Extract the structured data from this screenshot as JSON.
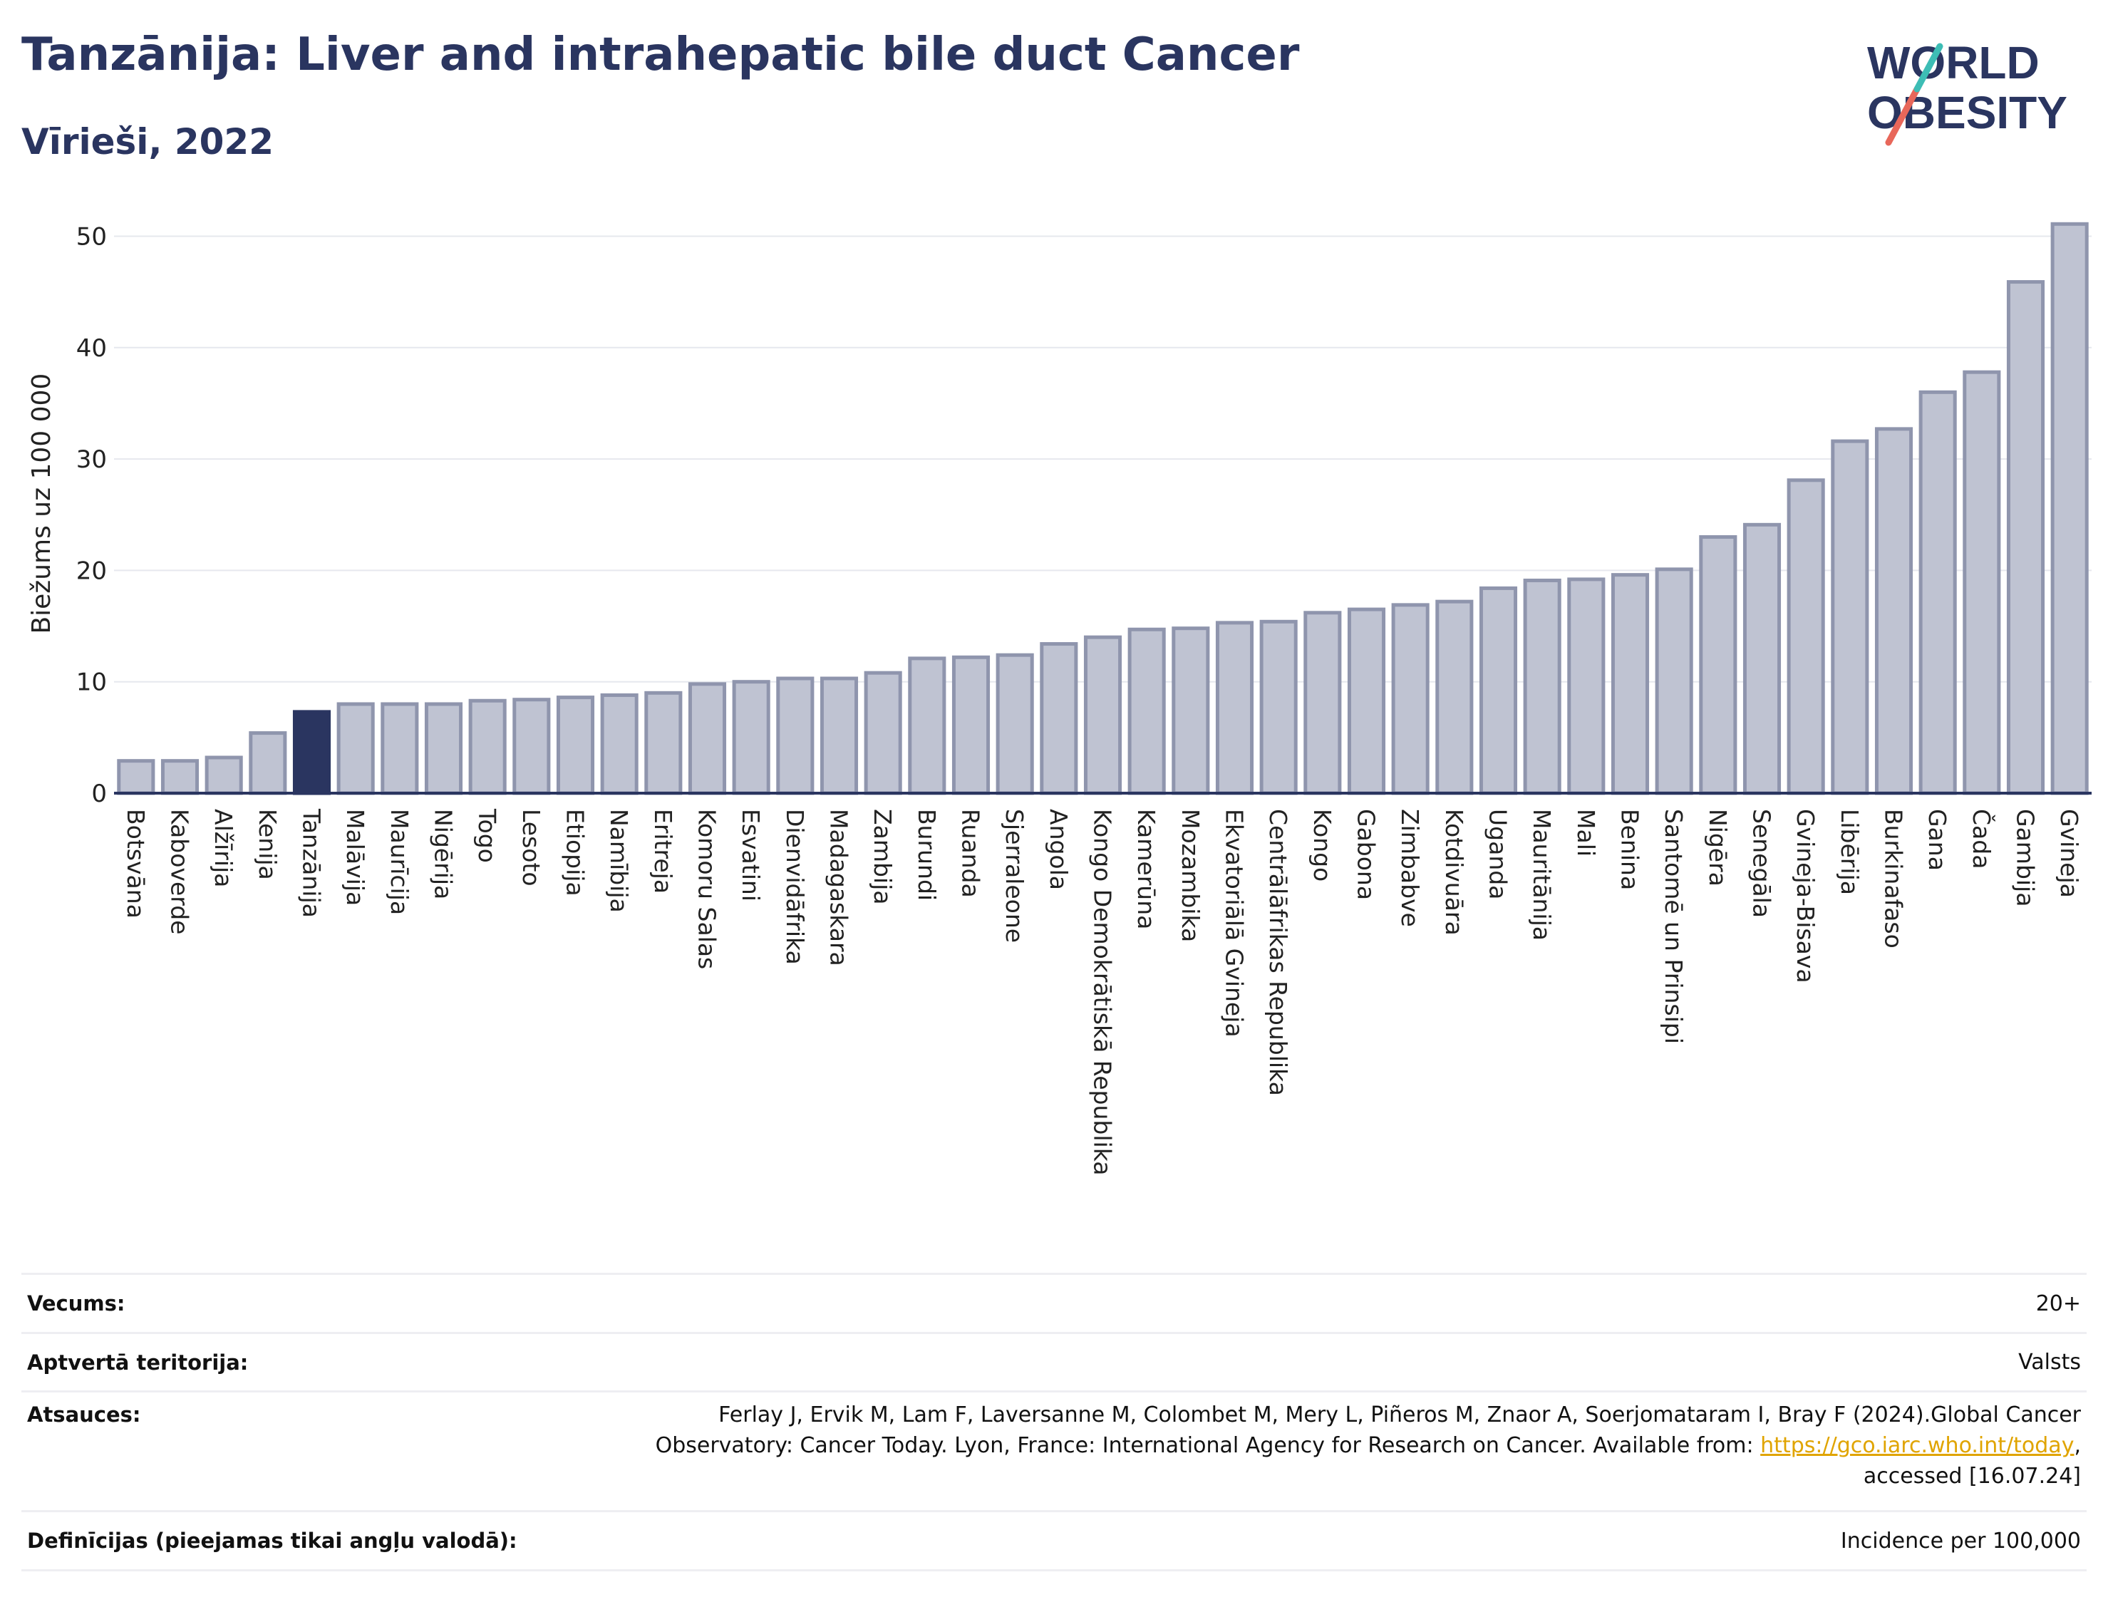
{
  "header": {
    "title": "Tanzānija: Liver and intrahepatic bile duct Cancer",
    "subtitle": "Vīrieši, 2022"
  },
  "logo": {
    "line1": "WORLD",
    "line2": "OBESITY",
    "colors": [
      "#2a3560",
      "#e8675a",
      "#3dbdb5"
    ]
  },
  "colors": {
    "bar": "#bfc3d2",
    "bar_stroke": "#8f95ad",
    "highlight": "#2a3560",
    "axis": "#2a3560",
    "grid": "#e6e8ee"
  },
  "chart_data": {
    "type": "bar",
    "title": "Tanzānija: Liver and intrahepatic bile duct Cancer",
    "subtitle": "Vīrieši, 2022",
    "ylabel": "Biežums uz 100 000",
    "xlabel": "",
    "ylim": [
      0,
      52
    ],
    "yticks": [
      0,
      10,
      20,
      30,
      40,
      50
    ],
    "grid": true,
    "highlight": "Tanzānija",
    "categories": [
      "Botsvāna",
      "Kaboverde",
      "Alžīrija",
      "Kenija",
      "Tanzānija",
      "Malāvija",
      "Maurīcija",
      "Nigērija",
      "Togo",
      "Lesoto",
      "Etiopija",
      "Namībija",
      "Eritreja",
      "Komoru Salas",
      "Esvatini",
      "Dienvidāfrika",
      "Madagaskara",
      "Zambija",
      "Burundi",
      "Ruanda",
      "Sjerraleone",
      "Angola",
      "Kongo Demokrātiskā Republika",
      "Kamerūna",
      "Mozambika",
      "Ekvatoriālā Gvineja",
      "Centrālāfrikas Republika",
      "Kongo",
      "Gabona",
      "Zimbabve",
      "Kotdivuāra",
      "Uganda",
      "Mauritānija",
      "Mali",
      "Benina",
      "Santomē un Prinsipi",
      "Nigēra",
      "Senegāla",
      "Gvineja-Bisava",
      "Libērija",
      "Burkinafaso",
      "Gana",
      "Čada",
      "Gambija",
      "Gvineja"
    ],
    "values": [
      2.9,
      2.9,
      3.2,
      5.4,
      7.3,
      8.0,
      8.0,
      8.0,
      8.3,
      8.4,
      8.6,
      8.8,
      9.0,
      9.8,
      10.0,
      10.3,
      10.3,
      10.8,
      12.1,
      12.2,
      12.4,
      13.4,
      14.0,
      14.7,
      14.8,
      15.3,
      15.4,
      16.2,
      16.5,
      16.9,
      17.2,
      18.4,
      19.1,
      19.2,
      19.6,
      20.1,
      23.0,
      24.1,
      28.1,
      31.6,
      32.7,
      36.0,
      37.8,
      45.9,
      51.1
    ]
  },
  "info": {
    "age_label": "Vecums:",
    "age_value": "20+",
    "territory_label": "Aptvertā teritorija:",
    "territory_value": "Valsts",
    "refs_label": "Atsauces:",
    "refs_text1": "Ferlay J, Ervik M, Lam F, Laversanne M, Colombet M, Mery L, Piñeros M, Znaor A, Soerjomataram I, Bray F (2024).Global Cancer",
    "refs_text2": "Observatory: Cancer Today. Lyon, France: International Agency for Research on Cancer. Available from: ",
    "refs_link": "https://gco.iarc.who.int/today",
    "refs_text3": ",",
    "refs_text4": "accessed [16.07.24]",
    "definitions_label": "Definīcijas (pieejamas tikai angļu valodā):",
    "definitions_value": "Incidence per 100,000"
  }
}
